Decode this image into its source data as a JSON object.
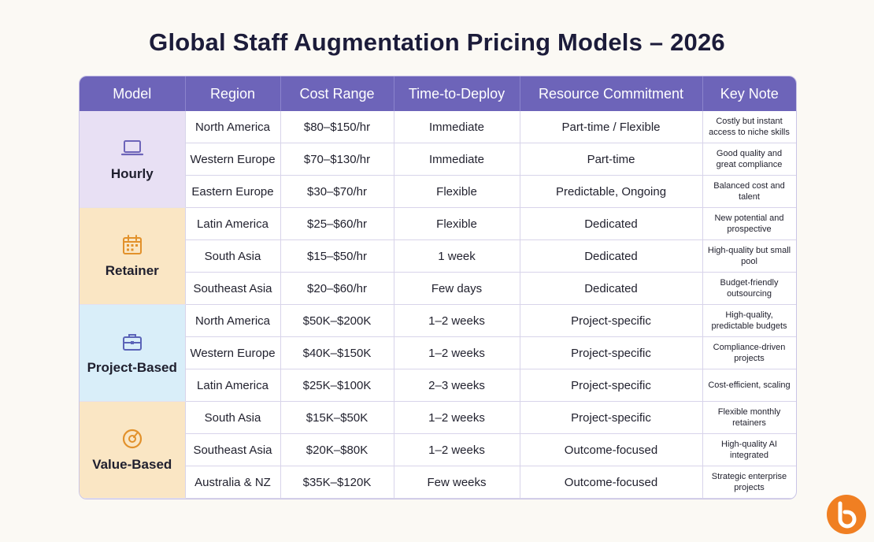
{
  "title": "Global Staff Augmentation Pricing Models – 2026",
  "headers": [
    "Model",
    "Region",
    "Cost Range",
    "Time-to-Deploy",
    "Resource Commitment",
    "Key Note"
  ],
  "models": [
    {
      "name": "Hourly",
      "icon": "laptop-icon",
      "rows": [
        {
          "region": "North America",
          "cost": "$80–$150/hr",
          "deploy": "Immediate",
          "commitment": "Part-time / Flexible",
          "note": "Costly but instant access to niche skills"
        },
        {
          "region": "Western Europe",
          "cost": "$70–$130/hr",
          "deploy": "Immediate",
          "commitment": "Part-time",
          "note": "Good quality and great compliance"
        },
        {
          "region": "Eastern Europe",
          "cost": "$30–$70/hr",
          "deploy": "Flexible",
          "commitment": "Predictable, Ongoing",
          "note": "Balanced cost and talent"
        }
      ]
    },
    {
      "name": "Retainer",
      "icon": "calendar-icon",
      "rows": [
        {
          "region": "Latin America",
          "cost": "$25–$60/hr",
          "deploy": "Flexible",
          "commitment": "Dedicated",
          "note": "New potential and prospective"
        },
        {
          "region": "South Asia",
          "cost": "$15–$50/hr",
          "deploy": "1 week",
          "commitment": "Dedicated",
          "note": "High-quality but small pool"
        },
        {
          "region": "Southeast Asia",
          "cost": "$20–$60/hr",
          "deploy": "Few days",
          "commitment": "Dedicated",
          "note": "Budget-friendly outsourcing"
        }
      ]
    },
    {
      "name": "Project-Based",
      "icon": "briefcase-icon",
      "rows": [
        {
          "region": "North America",
          "cost": "$50K–$200K",
          "deploy": "1–2 weeks",
          "commitment": "Project-specific",
          "note": "High-quality, predictable budgets"
        },
        {
          "region": "Western Europe",
          "cost": "$40K–$150K",
          "deploy": "1–2 weeks",
          "commitment": "Project-specific",
          "note": "Compliance-driven projects"
        },
        {
          "region": "Latin America",
          "cost": "$25K–$100K",
          "deploy": "2–3 weeks",
          "commitment": "Project-specific",
          "note": "Cost-efficient, scaling"
        }
      ]
    },
    {
      "name": "Value-Based",
      "icon": "gauge-icon",
      "rows": [
        {
          "region": "South Asia",
          "cost": "$15K–$50K",
          "deploy": "1–2 weeks",
          "commitment": "Project-specific",
          "note": "Flexible monthly retainers"
        },
        {
          "region": "Southeast Asia",
          "cost": "$20K–$80K",
          "deploy": "1–2 weeks",
          "commitment": "Outcome-focused",
          "note": "High-quality AI integrated"
        },
        {
          "region": "Australia & NZ",
          "cost": "$35K–$120K",
          "deploy": "Few weeks",
          "commitment": "Outcome-focused",
          "note": "Strategic enterprise projects"
        }
      ]
    }
  ],
  "colors": {
    "header": "#6d64b9",
    "hourly": "#e8e0f4",
    "retainer": "#fae6c4",
    "project": "#d9eef9",
    "value": "#fae6c4",
    "logo": "#f07f22"
  },
  "logo_icon": "brand-logo-icon"
}
